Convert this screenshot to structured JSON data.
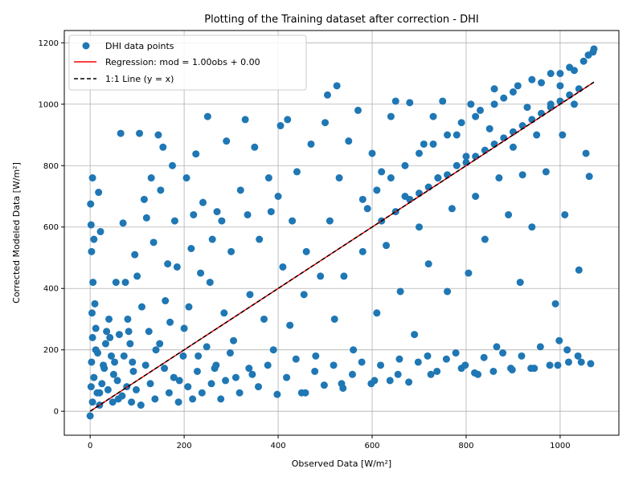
{
  "chart_data": {
    "type": "scatter",
    "title": "Plotting of the Training dataset after correction - DHI",
    "xlabel": "Observed Data [W/m²]",
    "ylabel": "Corrected Modeled Data [W/m²]",
    "xlim": [
      -55,
      1125
    ],
    "ylim": [
      -78,
      1240
    ],
    "xticks": [
      0,
      200,
      400,
      600,
      800,
      1000
    ],
    "yticks": [
      0,
      200,
      400,
      600,
      800,
      1000,
      1200
    ],
    "grid": true,
    "legend_position": "top-left",
    "colors": {
      "points": "#1f77b4",
      "regression": "#ff0000",
      "identity": "#000000",
      "grid": "#b0b0b0"
    },
    "series": [
      {
        "name": "DHI data points",
        "kind": "scatter"
      },
      {
        "name": "Regression: mod = 1.00obs + 0.00",
        "kind": "line",
        "slope": 1.0,
        "intercept": 0.0,
        "x_range": [
          0,
          1072
        ]
      },
      {
        "name": "1:1 Line (y = x)",
        "kind": "line",
        "style": "dashed",
        "slope": 1.0,
        "intercept": 0.0,
        "x_range": [
          0,
          1072
        ]
      }
    ],
    "points": [
      [
        0,
        -15
      ],
      [
        2,
        80
      ],
      [
        3,
        160
      ],
      [
        5,
        240
      ],
      [
        4,
        320
      ],
      [
        6,
        420
      ],
      [
        3,
        520
      ],
      [
        2,
        607
      ],
      [
        1,
        675
      ],
      [
        5,
        760
      ],
      [
        8,
        560
      ],
      [
        10,
        350
      ],
      [
        12,
        200
      ],
      [
        15,
        60
      ],
      [
        20,
        20
      ],
      [
        25,
        90
      ],
      [
        30,
        140
      ],
      [
        35,
        260
      ],
      [
        18,
        713
      ],
      [
        22,
        585
      ],
      [
        40,
        300
      ],
      [
        45,
        180
      ],
      [
        50,
        120
      ],
      [
        55,
        420
      ],
      [
        60,
        40
      ],
      [
        65,
        905
      ],
      [
        70,
        613
      ],
      [
        75,
        420
      ],
      [
        80,
        300
      ],
      [
        85,
        220
      ],
      [
        90,
        160
      ],
      [
        95,
        510
      ],
      [
        100,
        440
      ],
      [
        105,
        905
      ],
      [
        110,
        340
      ],
      [
        115,
        690
      ],
      [
        120,
        630
      ],
      [
        125,
        260
      ],
      [
        130,
        760
      ],
      [
        135,
        550
      ],
      [
        140,
        200
      ],
      [
        145,
        900
      ],
      [
        150,
        720
      ],
      [
        155,
        860
      ],
      [
        160,
        360
      ],
      [
        165,
        480
      ],
      [
        170,
        290
      ],
      [
        175,
        800
      ],
      [
        180,
        620
      ],
      [
        185,
        470
      ],
      [
        190,
        100
      ],
      [
        200,
        270
      ],
      [
        205,
        760
      ],
      [
        210,
        340
      ],
      [
        215,
        530
      ],
      [
        220,
        640
      ],
      [
        225,
        838
      ],
      [
        230,
        180
      ],
      [
        235,
        450
      ],
      [
        240,
        680
      ],
      [
        250,
        960
      ],
      [
        255,
        420
      ],
      [
        260,
        560
      ],
      [
        265,
        140
      ],
      [
        270,
        650
      ],
      [
        280,
        620
      ],
      [
        285,
        320
      ],
      [
        290,
        880
      ],
      [
        300,
        520
      ],
      [
        305,
        230
      ],
      [
        310,
        110
      ],
      [
        320,
        720
      ],
      [
        330,
        950
      ],
      [
        335,
        640
      ],
      [
        340,
        380
      ],
      [
        345,
        120
      ],
      [
        350,
        860
      ],
      [
        360,
        560
      ],
      [
        370,
        300
      ],
      [
        380,
        760
      ],
      [
        385,
        650
      ],
      [
        390,
        200
      ],
      [
        400,
        700
      ],
      [
        405,
        930
      ],
      [
        410,
        470
      ],
      [
        420,
        950
      ],
      [
        425,
        280
      ],
      [
        430,
        620
      ],
      [
        440,
        780
      ],
      [
        450,
        60
      ],
      [
        455,
        380
      ],
      [
        460,
        520
      ],
      [
        470,
        870
      ],
      [
        480,
        180
      ],
      [
        490,
        440
      ],
      [
        500,
        940
      ],
      [
        505,
        1030
      ],
      [
        510,
        620
      ],
      [
        520,
        300
      ],
      [
        525,
        1060
      ],
      [
        530,
        760
      ],
      [
        535,
        90
      ],
      [
        540,
        440
      ],
      [
        550,
        880
      ],
      [
        560,
        200
      ],
      [
        570,
        980
      ],
      [
        580,
        520
      ],
      [
        590,
        660
      ],
      [
        600,
        840
      ],
      [
        605,
        100
      ],
      [
        610,
        320
      ],
      [
        620,
        780
      ],
      [
        630,
        540
      ],
      [
        640,
        960
      ],
      [
        650,
        1010
      ],
      [
        655,
        120
      ],
      [
        660,
        390
      ],
      [
        670,
        700
      ],
      [
        680,
        1005
      ],
      [
        690,
        250
      ],
      [
        700,
        600
      ],
      [
        710,
        870
      ],
      [
        720,
        480
      ],
      [
        725,
        120
      ],
      [
        730,
        960
      ],
      [
        740,
        760
      ],
      [
        750,
        1010
      ],
      [
        760,
        390
      ],
      [
        770,
        660
      ],
      [
        780,
        900
      ],
      [
        790,
        140
      ],
      [
        800,
        830
      ],
      [
        805,
        450
      ],
      [
        810,
        1000
      ],
      [
        820,
        700
      ],
      [
        825,
        120
      ],
      [
        830,
        980
      ],
      [
        840,
        560
      ],
      [
        850,
        920
      ],
      [
        860,
        1050
      ],
      [
        865,
        210
      ],
      [
        870,
        760
      ],
      [
        880,
        1020
      ],
      [
        890,
        640
      ],
      [
        895,
        140
      ],
      [
        900,
        860
      ],
      [
        910,
        1060
      ],
      [
        915,
        420
      ],
      [
        920,
        770
      ],
      [
        930,
        990
      ],
      [
        940,
        600
      ],
      [
        945,
        140
      ],
      [
        950,
        900
      ],
      [
        960,
        1070
      ],
      [
        970,
        780
      ],
      [
        980,
        1000
      ],
      [
        990,
        350
      ],
      [
        995,
        150
      ],
      [
        1000,
        1100
      ],
      [
        1005,
        900
      ],
      [
        1010,
        640
      ],
      [
        1015,
        200
      ],
      [
        1020,
        1120
      ],
      [
        1030,
        1000
      ],
      [
        1040,
        460
      ],
      [
        1045,
        160
      ],
      [
        1050,
        1140
      ],
      [
        1055,
        840
      ],
      [
        1060,
        1160
      ],
      [
        1062,
        765
      ],
      [
        1065,
        155
      ],
      [
        1070,
        1170
      ],
      [
        1072,
        1180
      ],
      [
        5,
        30
      ],
      [
        8,
        110
      ],
      [
        12,
        270
      ],
      [
        16,
        190
      ],
      [
        20,
        60
      ],
      [
        28,
        150
      ],
      [
        33,
        220
      ],
      [
        38,
        70
      ],
      [
        42,
        240
      ],
      [
        48,
        30
      ],
      [
        52,
        160
      ],
      [
        58,
        100
      ],
      [
        62,
        250
      ],
      [
        68,
        50
      ],
      [
        72,
        180
      ],
      [
        78,
        80
      ],
      [
        82,
        260
      ],
      [
        88,
        30
      ],
      [
        92,
        130
      ],
      [
        98,
        70
      ],
      [
        108,
        20
      ],
      [
        118,
        150
      ],
      [
        128,
        90
      ],
      [
        138,
        40
      ],
      [
        148,
        220
      ],
      [
        158,
        140
      ],
      [
        168,
        60
      ],
      [
        178,
        110
      ],
      [
        188,
        30
      ],
      [
        198,
        180
      ],
      [
        208,
        80
      ],
      [
        218,
        40
      ],
      [
        228,
        130
      ],
      [
        238,
        60
      ],
      [
        248,
        210
      ],
      [
        258,
        90
      ],
      [
        268,
        150
      ],
      [
        278,
        40
      ],
      [
        288,
        100
      ],
      [
        298,
        190
      ],
      [
        318,
        60
      ],
      [
        338,
        140
      ],
      [
        358,
        80
      ],
      [
        378,
        150
      ],
      [
        398,
        55
      ],
      [
        418,
        110
      ],
      [
        438,
        170
      ],
      [
        458,
        60
      ],
      [
        478,
        130
      ],
      [
        498,
        85
      ],
      [
        518,
        150
      ],
      [
        538,
        75
      ],
      [
        558,
        120
      ],
      [
        578,
        160
      ],
      [
        598,
        90
      ],
      [
        618,
        150
      ],
      [
        638,
        100
      ],
      [
        658,
        170
      ],
      [
        678,
        95
      ],
      [
        698,
        160
      ],
      [
        718,
        180
      ],
      [
        738,
        130
      ],
      [
        758,
        170
      ],
      [
        778,
        190
      ],
      [
        798,
        150
      ],
      [
        818,
        125
      ],
      [
        838,
        175
      ],
      [
        858,
        130
      ],
      [
        878,
        190
      ],
      [
        898,
        135
      ],
      [
        918,
        180
      ],
      [
        938,
        140
      ],
      [
        958,
        210
      ],
      [
        978,
        150
      ],
      [
        998,
        230
      ],
      [
        1018,
        160
      ],
      [
        1038,
        180
      ],
      [
        620,
        620
      ],
      [
        650,
        650
      ],
      [
        680,
        690
      ],
      [
        700,
        710
      ],
      [
        720,
        730
      ],
      [
        740,
        760
      ],
      [
        760,
        770
      ],
      [
        780,
        800
      ],
      [
        800,
        810
      ],
      [
        820,
        830
      ],
      [
        840,
        850
      ],
      [
        860,
        870
      ],
      [
        880,
        890
      ],
      [
        900,
        910
      ],
      [
        920,
        930
      ],
      [
        940,
        950
      ],
      [
        960,
        970
      ],
      [
        980,
        990
      ],
      [
        1000,
        1010
      ],
      [
        1020,
        1030
      ],
      [
        1040,
        1050
      ],
      [
        820,
        960
      ],
      [
        860,
        1000
      ],
      [
        900,
        1040
      ],
      [
        940,
        1080
      ],
      [
        980,
        1100
      ],
      [
        1000,
        1060
      ],
      [
        1030,
        1110
      ],
      [
        790,
        940
      ],
      [
        760,
        900
      ],
      [
        730,
        870
      ],
      [
        700,
        840
      ],
      [
        670,
        800
      ],
      [
        640,
        760
      ],
      [
        610,
        720
      ],
      [
        580,
        690
      ]
    ]
  }
}
